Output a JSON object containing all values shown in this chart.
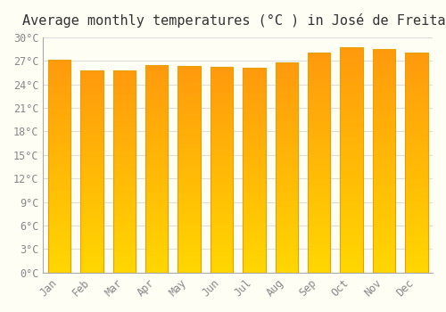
{
  "title": "Average monthly temperatures (°C ) in José de Freitas",
  "months": [
    "Jan",
    "Feb",
    "Mar",
    "Apr",
    "May",
    "Jun",
    "Jul",
    "Aug",
    "Sep",
    "Oct",
    "Nov",
    "Dec"
  ],
  "values": [
    27.1,
    25.8,
    25.8,
    26.5,
    26.4,
    26.2,
    26.1,
    26.8,
    28.1,
    28.7,
    28.5,
    28.0
  ],
  "bar_color_top": "#FFA500",
  "bar_color_bottom": "#FFD700",
  "bar_edge_color": "#E8A000",
  "ylim": [
    0,
    30
  ],
  "yticks": [
    0,
    3,
    6,
    9,
    12,
    15,
    18,
    21,
    24,
    27,
    30
  ],
  "ytick_labels": [
    "0°C",
    "3°C",
    "6°C",
    "9°C",
    "12°C",
    "15°C",
    "18°C",
    "21°C",
    "24°C",
    "27°C",
    "30°C"
  ],
  "background_color": "#FFFEF5",
  "grid_color": "#DDDDDD",
  "title_fontsize": 11,
  "tick_fontsize": 8.5,
  "title_color": "#333333",
  "tick_color": "#888888"
}
